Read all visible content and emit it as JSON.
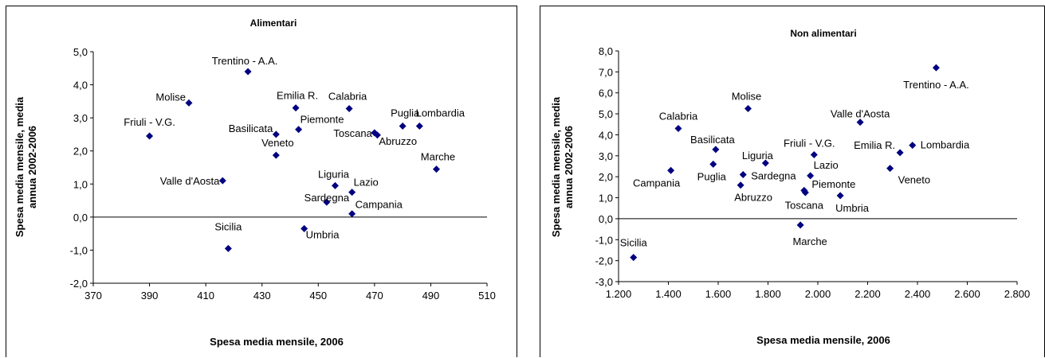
{
  "chart_data": [
    {
      "type": "scatter",
      "title": "Alimentari",
      "xlabel": "Spesa media mensile, 2006",
      "ylabel_lines": [
        "Spesa media mensile, media",
        "annua 2002-2006"
      ],
      "xlim": [
        370,
        510
      ],
      "ylim": [
        -2.0,
        5.0
      ],
      "xticks": [
        370,
        390,
        410,
        430,
        450,
        470,
        490,
        510
      ],
      "yticks": [
        -2.0,
        -1.0,
        0.0,
        1.0,
        2.0,
        3.0,
        4.0,
        5.0
      ],
      "x_tick_labels": [
        "370",
        "390",
        "410",
        "430",
        "450",
        "470",
        "490",
        "510"
      ],
      "y_tick_labels": [
        "-2,0",
        "-1,0",
        "0,0",
        "1,0",
        "2,0",
        "3,0",
        "4,0",
        "5,0"
      ],
      "marker_color": "#000080",
      "grid": false,
      "points": [
        {
          "label": "Trentino - A.A.",
          "x": 425,
          "y": 4.4,
          "dx": -4,
          "dy": -9,
          "anchor": "middle"
        },
        {
          "label": "Molise",
          "x": 404,
          "y": 3.45,
          "dx": -4,
          "dy": -3,
          "anchor": "end"
        },
        {
          "label": "Friuli - V.G.",
          "x": 390,
          "y": 2.45,
          "dx": 0,
          "dy": -13,
          "anchor": "middle"
        },
        {
          "label": "Emilia R.",
          "x": 442,
          "y": 3.3,
          "dx": 2,
          "dy": -11,
          "anchor": "middle"
        },
        {
          "label": "Calabria",
          "x": 461,
          "y": 3.28,
          "dx": -2,
          "dy": -11,
          "anchor": "middle"
        },
        {
          "label": "Puglia",
          "x": 480,
          "y": 2.75,
          "dx": 3,
          "dy": -12,
          "anchor": "middle"
        },
        {
          "label": "Lombardia",
          "x": 486,
          "y": 2.75,
          "dx": 26,
          "dy": -12,
          "anchor": "middle"
        },
        {
          "label": "Basilicata",
          "x": 435,
          "y": 2.5,
          "dx": -4,
          "dy": -3,
          "anchor": "end"
        },
        {
          "label": "Piemonte",
          "x": 443,
          "y": 2.65,
          "dx": 2,
          "dy": -8,
          "anchor": "start"
        },
        {
          "label": "Toscana",
          "x": 470,
          "y": 2.55,
          "dx": -3,
          "dy": 5,
          "anchor": "end"
        },
        {
          "label": "Abruzzo",
          "x": 471,
          "y": 2.48,
          "dx": 2,
          "dy": 12,
          "anchor": "start"
        },
        {
          "label": "Veneto",
          "x": 435,
          "y": 1.87,
          "dx": 2,
          "dy": -11,
          "anchor": "middle"
        },
        {
          "label": "Marche",
          "x": 492,
          "y": 1.45,
          "dx": 2,
          "dy": -11,
          "anchor": "middle"
        },
        {
          "label": "Valle d'Aosta",
          "x": 416,
          "y": 1.1,
          "dx": -4,
          "dy": 5,
          "anchor": "end"
        },
        {
          "label": "Liguria",
          "x": 456,
          "y": 0.95,
          "dx": -2,
          "dy": -10,
          "anchor": "middle"
        },
        {
          "label": "Lazio",
          "x": 462,
          "y": 0.75,
          "dx": 2,
          "dy": -8,
          "anchor": "start"
        },
        {
          "label": "Sardegna",
          "x": 453,
          "y": 0.45,
          "dx": 0,
          "dy": -1,
          "anchor": "middle"
        },
        {
          "label": "Campania",
          "x": 462,
          "y": 0.1,
          "dx": 4,
          "dy": -7,
          "anchor": "start"
        },
        {
          "label": "Umbria",
          "x": 445,
          "y": -0.35,
          "dx": 2,
          "dy": 12,
          "anchor": "start"
        },
        {
          "label": "Sicilia",
          "x": 418,
          "y": -0.95,
          "dx": 0,
          "dy": -23,
          "anchor": "middle"
        }
      ]
    },
    {
      "type": "scatter",
      "title": "Non alimentari",
      "xlabel": "Spesa media mensile, 2006",
      "ylabel_lines": [
        "Spesa media mensile, media",
        "annua 2002-2006"
      ],
      "xlim": [
        1200,
        2800
      ],
      "ylim": [
        -3.0,
        8.0
      ],
      "xticks": [
        1200,
        1400,
        1600,
        1800,
        2000,
        2200,
        2400,
        2600,
        2800
      ],
      "yticks": [
        -3.0,
        -2.0,
        -1.0,
        0.0,
        1.0,
        2.0,
        3.0,
        4.0,
        5.0,
        6.0,
        7.0,
        8.0
      ],
      "x_tick_labels": [
        "1.200",
        "1.400",
        "1.600",
        "1.800",
        "2.000",
        "2.200",
        "2.400",
        "2.600",
        "2.800"
      ],
      "y_tick_labels": [
        "-3,0",
        "-2,0",
        "-1,0",
        "0,0",
        "1,0",
        "2,0",
        "3,0",
        "4,0",
        "5,0",
        "6,0",
        "7,0",
        "8,0"
      ],
      "marker_color": "#000080",
      "grid": false,
      "points": [
        {
          "label": "Trentino - A.A.",
          "x": 2475,
          "y": 7.2,
          "dx": 0,
          "dy": 26,
          "anchor": "middle"
        },
        {
          "label": "Molise",
          "x": 1720,
          "y": 5.25,
          "dx": -2,
          "dy": -11,
          "anchor": "middle"
        },
        {
          "label": "Valle d'Aosta",
          "x": 2170,
          "y": 4.6,
          "dx": 0,
          "dy": -6,
          "anchor": "middle"
        },
        {
          "label": "Calabria",
          "x": 1440,
          "y": 4.3,
          "dx": 0,
          "dy": -11,
          "anchor": "middle"
        },
        {
          "label": "Lombardia",
          "x": 2380,
          "y": 3.5,
          "dx": 10,
          "dy": 4,
          "anchor": "start"
        },
        {
          "label": "Basilicata",
          "x": 1590,
          "y": 3.3,
          "dx": -4,
          "dy": -8,
          "anchor": "middle"
        },
        {
          "label": "Emilia R.",
          "x": 2330,
          "y": 3.15,
          "dx": -6,
          "dy": -5,
          "anchor": "end"
        },
        {
          "label": "Friuli - V.G.",
          "x": 1985,
          "y": 3.05,
          "dx": -6,
          "dy": -10,
          "anchor": "middle"
        },
        {
          "label": "Liguria",
          "x": 1790,
          "y": 2.65,
          "dx": -10,
          "dy": -5,
          "anchor": "middle"
        },
        {
          "label": "Puglia",
          "x": 1580,
          "y": 2.6,
          "dx": -2,
          "dy": 20,
          "anchor": "middle"
        },
        {
          "label": "Veneto",
          "x": 2290,
          "y": 2.4,
          "dx": 10,
          "dy": 19,
          "anchor": "start"
        },
        {
          "label": "Campania",
          "x": 1410,
          "y": 2.3,
          "dx": -18,
          "dy": 20,
          "anchor": "middle"
        },
        {
          "label": "Sardegna",
          "x": 1700,
          "y": 2.1,
          "dx": 10,
          "dy": 6,
          "anchor": "start"
        },
        {
          "label": "Lazio",
          "x": 1970,
          "y": 2.05,
          "dx": 4,
          "dy": -9,
          "anchor": "start"
        },
        {
          "label": "Abruzzo",
          "x": 1690,
          "y": 1.6,
          "dx": 16,
          "dy": 20,
          "anchor": "middle"
        },
        {
          "label": "Toscana",
          "x": 1945,
          "y": 1.35,
          "dx": 0,
          "dy": 23,
          "anchor": "middle"
        },
        {
          "label": "Piemonte",
          "x": 1950,
          "y": 1.25,
          "dx": 8,
          "dy": -6,
          "anchor": "start"
        },
        {
          "label": "Umbria",
          "x": 2090,
          "y": 1.1,
          "dx": -6,
          "dy": 20,
          "anchor": "start"
        },
        {
          "label": "Marche",
          "x": 1930,
          "y": -0.3,
          "dx": 12,
          "dy": 25,
          "anchor": "middle"
        },
        {
          "label": "Sicilia",
          "x": 1260,
          "y": -1.85,
          "dx": 0,
          "dy": -14,
          "anchor": "middle"
        }
      ]
    }
  ]
}
